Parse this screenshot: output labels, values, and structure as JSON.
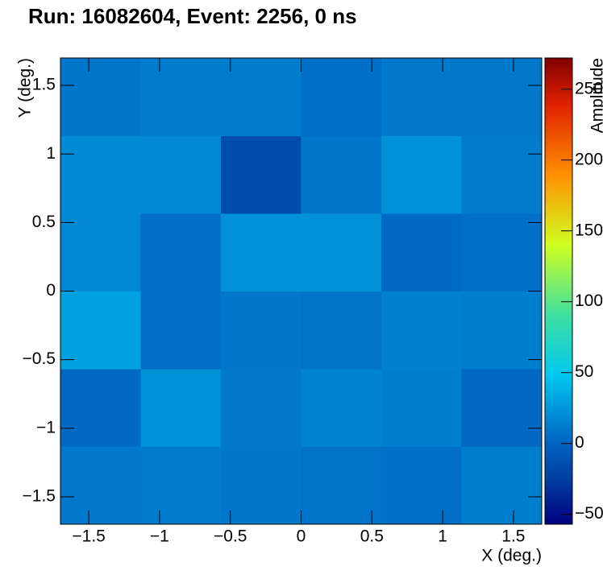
{
  "chart_data": {
    "type": "heatmap",
    "title": "Run: 16082604, Event: 2256, 0 ns",
    "x_label": "X (deg.)",
    "y_label": "Y (deg.)",
    "z_label": "Amplitude",
    "x_bins": [
      -1.7,
      -1.133,
      -0.567,
      0,
      0.567,
      1.133,
      1.7
    ],
    "y_bins": [
      -1.7,
      -1.133,
      -0.567,
      0,
      0.567,
      1.133,
      1.7
    ],
    "z": [
      [
        11,
        12,
        10,
        8,
        6,
        13
      ],
      [
        3,
        22,
        11,
        16,
        13,
        3
      ],
      [
        30,
        5,
        10,
        8,
        14,
        13
      ],
      [
        18,
        5,
        22,
        22,
        3,
        6
      ],
      [
        20,
        18,
        -15,
        10,
        22,
        12
      ],
      [
        10,
        12,
        12,
        6,
        11,
        11
      ]
    ],
    "xlim": [
      -1.7,
      1.7
    ],
    "ylim": [
      -1.7,
      1.7
    ],
    "zlim": [
      -57,
      272
    ],
    "xticks": [
      {
        "value": -1.5,
        "label": "−1.5"
      },
      {
        "value": -1,
        "label": "−1"
      },
      {
        "value": -0.5,
        "label": "−0.5"
      },
      0,
      0.5,
      1,
      1.5
    ],
    "yticks": [
      {
        "value": -1.5,
        "label": "−1.5"
      },
      {
        "value": -1,
        "label": "−1"
      },
      {
        "value": -0.5,
        "label": "−0.5"
      },
      0,
      0.5,
      1,
      1.5
    ],
    "zticks": [
      {
        "value": -50,
        "label": "−50"
      },
      0,
      50,
      100,
      150,
      200,
      250
    ],
    "colorscale": [
      [
        0,
        "#000080"
      ],
      [
        0.1,
        "#0040a0"
      ],
      [
        0.17,
        "#0060c0"
      ],
      [
        0.32,
        "#00c8f0"
      ],
      [
        0.45,
        "#40e0a0"
      ],
      [
        0.6,
        "#d0ff20"
      ],
      [
        0.75,
        "#ff9000"
      ],
      [
        0.9,
        "#e02000"
      ],
      [
        1,
        "#800000"
      ]
    ]
  }
}
